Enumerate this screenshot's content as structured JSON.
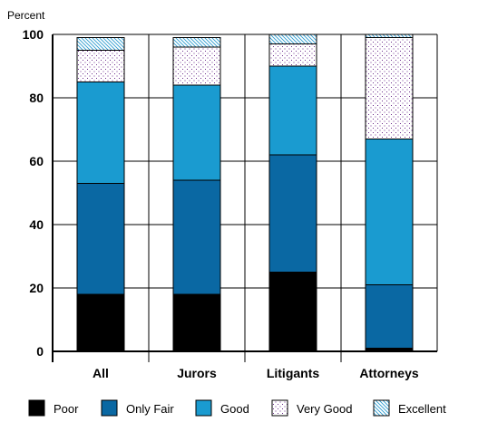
{
  "chart_data": {
    "type": "bar",
    "stacked": true,
    "title": "",
    "xlabel": "",
    "ylabel": "Percent",
    "ylim": [
      0,
      100
    ],
    "yticks": [
      0,
      20,
      40,
      60,
      80,
      100
    ],
    "grid": true,
    "legend_position": "bottom",
    "categories": [
      "All",
      "Jurors",
      "Litigants",
      "Attorneys"
    ],
    "series": [
      {
        "name": "Poor",
        "values": [
          18,
          18,
          25,
          1
        ],
        "color": "#000000",
        "pattern": "solid"
      },
      {
        "name": "Only Fair",
        "values": [
          35,
          36,
          37,
          20
        ],
        "color": "#0a68a3",
        "pattern": "solid"
      },
      {
        "name": "Good",
        "values": [
          32,
          30,
          28,
          46
        ],
        "color": "#1a9bd0",
        "pattern": "solid"
      },
      {
        "name": "Very Good",
        "values": [
          10,
          12,
          7,
          32
        ],
        "color": "#6a2a8a",
        "pattern": "dots"
      },
      {
        "name": "Excellent",
        "values": [
          4,
          3,
          3,
          1
        ],
        "color": "#2a9bcf",
        "pattern": "hatch"
      }
    ]
  }
}
